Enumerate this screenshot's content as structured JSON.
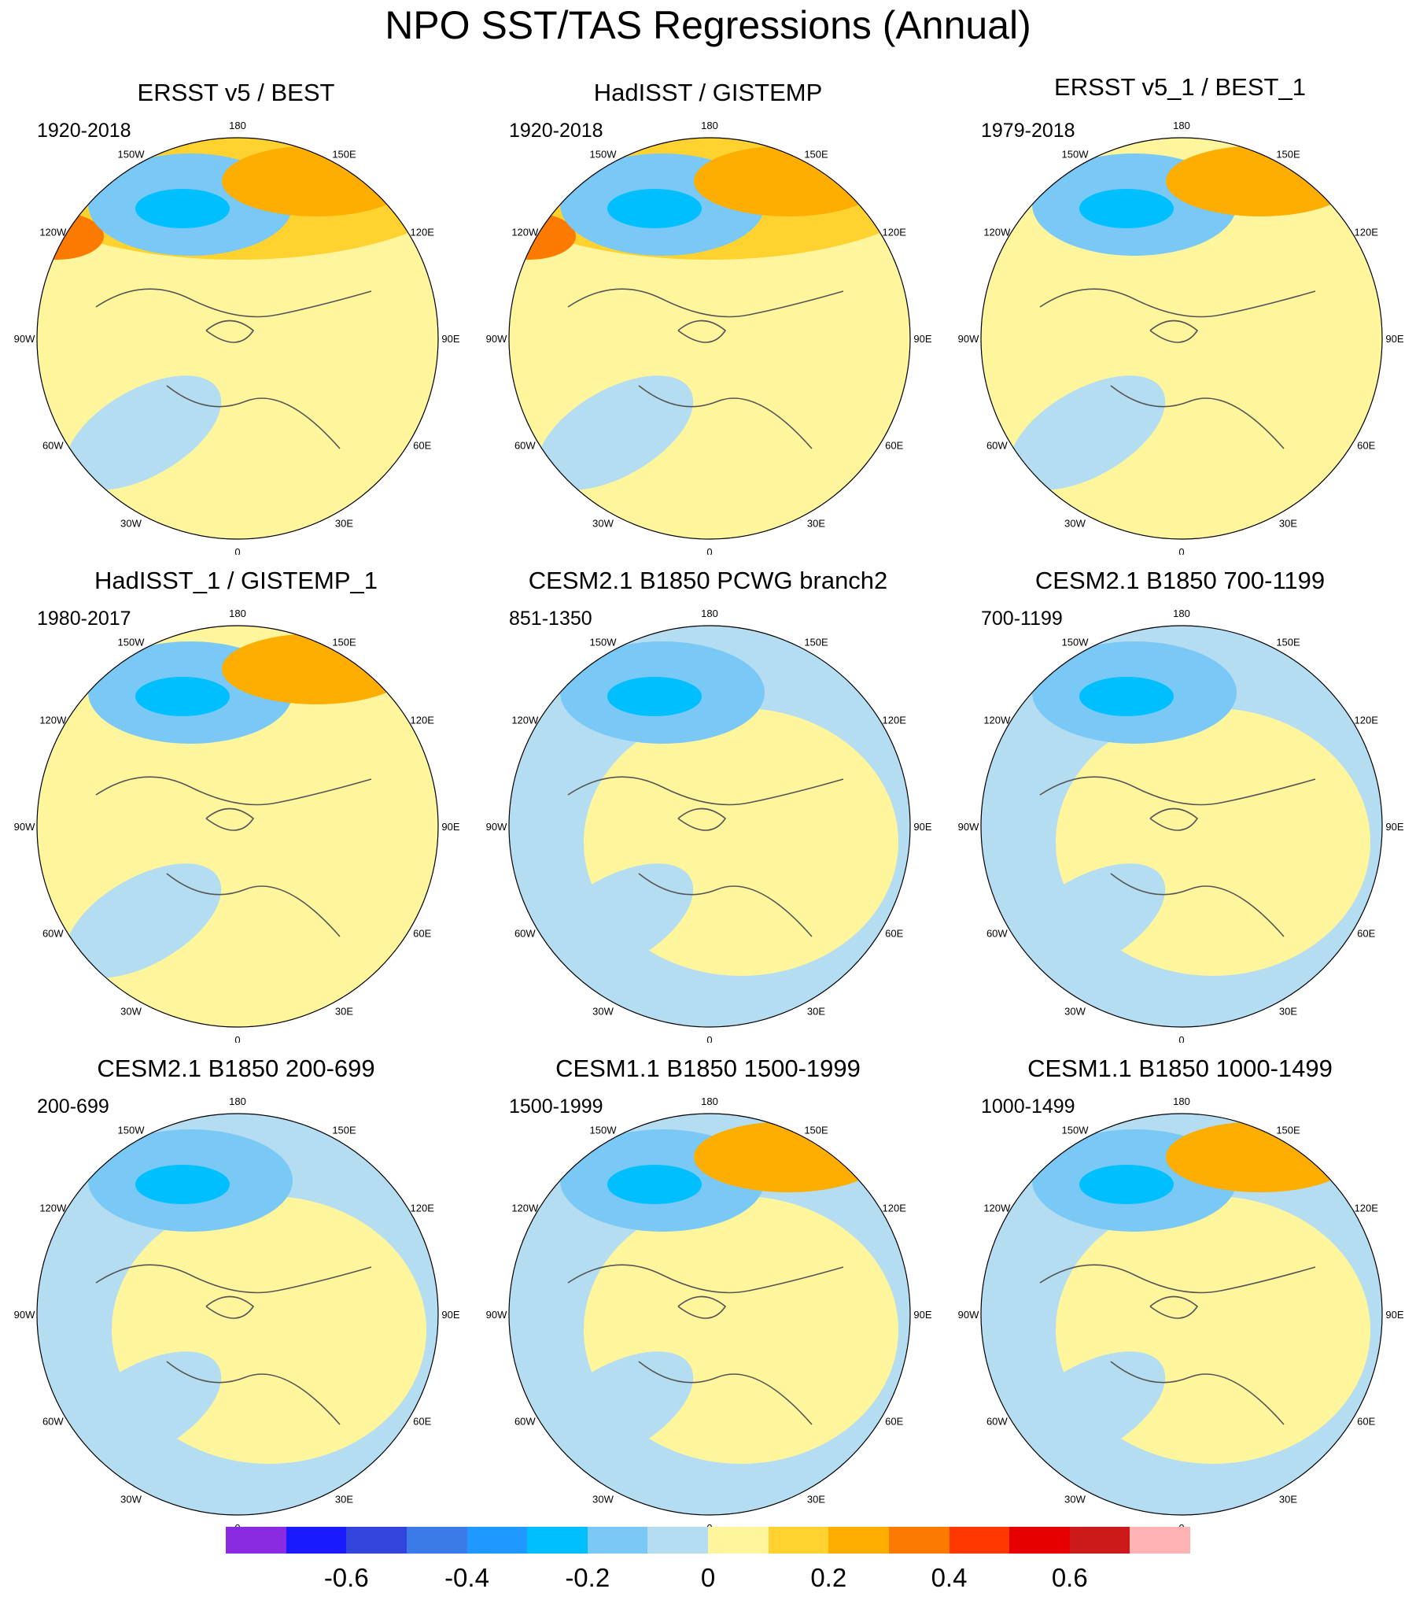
{
  "figure_title": "NPO SST/TAS Regressions (Annual)",
  "longitude_labels": {
    "top": "180",
    "bottom": "0",
    "w150": "150W",
    "e150": "150E",
    "w120": "120W",
    "e120": "120E",
    "w90": "90W",
    "e90": "90E",
    "w60": "60W",
    "e60": "60E",
    "w30": "30W",
    "e30": "30E"
  },
  "panels": [
    {
      "title": "ERSST v5 / BEST",
      "period": "1920-2018"
    },
    {
      "title": "HadISST / GISTEMP",
      "period": "1920-2018"
    },
    {
      "title": "ERSST v5_1 / BEST_1",
      "period": "1979-2018"
    },
    {
      "title": "HadISST_1 / GISTEMP_1",
      "period": "1980-2017"
    },
    {
      "title": "CESM2.1 B1850 PCWG branch2",
      "period": "851-1350"
    },
    {
      "title": "CESM2.1 B1850 700-1199",
      "period": "700-1199"
    },
    {
      "title": "CESM2.1 B1850 200-699",
      "period": "200-699"
    },
    {
      "title": "CESM1.1 B1850 1500-1999",
      "period": "1500-1999"
    },
    {
      "title": "CESM1.1 B1850 1000-1499",
      "period": "1000-1499"
    }
  ],
  "colorbar": {
    "colors": [
      "#8a2be2",
      "#1a1aff",
      "#3344dd",
      "#3a7be8",
      "#1f99ff",
      "#00bfff",
      "#79c8f5",
      "#b5ddf2",
      "#fff59d",
      "#ffd22f",
      "#fdae00",
      "#fd7a00",
      "#ff3700",
      "#e60000",
      "#cc1a1a",
      "#ffb3b3"
    ],
    "tick_labels": [
      "-0.6",
      "-0.4",
      "-0.2",
      "0",
      "0.2",
      "0.4",
      "0.6"
    ]
  }
}
